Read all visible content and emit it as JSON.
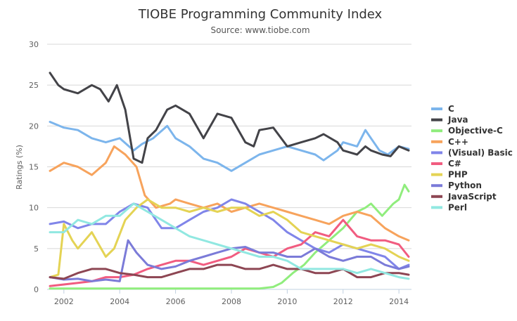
{
  "chart_data": {
    "type": "line",
    "title": "TIOBE Programming Community Index",
    "subtitle": "Source: www.tiobe.com",
    "xlabel": "",
    "ylabel": "Ratings (%)",
    "ylim": [
      0,
      30
    ],
    "yticks": [
      0,
      5,
      10,
      15,
      20,
      25,
      30
    ],
    "xlim": [
      2001.4,
      2014.45
    ],
    "xticks": [
      2002,
      2004,
      2006,
      2008,
      2010,
      2012,
      2014
    ],
    "xtick_labels": [
      "2002",
      "2004",
      "2006",
      "2008",
      "2010",
      "2012",
      "2014"
    ],
    "grid": true,
    "legend": "right",
    "series": [
      {
        "name": "C",
        "color": "#7cb5ec",
        "x": [
          2001.5,
          2002,
          2002.5,
          2003,
          2003.5,
          2004,
          2004.5,
          2004.8,
          2005.2,
          2005.7,
          2006,
          2006.5,
          2007,
          2007.5,
          2008,
          2008.5,
          2009,
          2009.5,
          2010,
          2010.5,
          2011,
          2011.3,
          2011.8,
          2012,
          2012.5,
          2012.8,
          2013,
          2013.3,
          2013.6,
          2014,
          2014.35
        ],
        "values": [
          20.5,
          19.8,
          19.5,
          18.5,
          18.0,
          18.5,
          17.0,
          17.8,
          18.5,
          20.0,
          18.5,
          17.5,
          16.0,
          15.5,
          14.5,
          15.5,
          16.5,
          17.0,
          17.5,
          17.0,
          16.5,
          15.8,
          17.0,
          18.0,
          17.5,
          19.5,
          18.5,
          17.0,
          16.5,
          17.5,
          17.2
        ]
      },
      {
        "name": "Java",
        "color": "#434348",
        "x": [
          2001.5,
          2001.8,
          2002,
          2002.5,
          2003,
          2003.3,
          2003.6,
          2003.9,
          2004.2,
          2004.5,
          2004.8,
          2005,
          2005.3,
          2005.7,
          2006,
          2006.5,
          2007,
          2007.5,
          2008,
          2008.5,
          2008.8,
          2009,
          2009.5,
          2010,
          2010.5,
          2011,
          2011.3,
          2011.8,
          2012,
          2012.5,
          2012.8,
          2013,
          2013.4,
          2013.7,
          2014,
          2014.35
        ],
        "values": [
          26.5,
          25.0,
          24.5,
          24.0,
          25.0,
          24.5,
          23.0,
          25.0,
          22.0,
          16.0,
          15.5,
          18.5,
          19.5,
          22.0,
          22.5,
          21.5,
          18.5,
          21.5,
          21.0,
          18.0,
          17.5,
          19.5,
          19.8,
          17.5,
          18.0,
          18.5,
          19.0,
          18.0,
          17.0,
          16.5,
          17.5,
          17.0,
          16.5,
          16.3,
          17.5,
          17.0
        ]
      },
      {
        "name": "Objective-C",
        "color": "#90ed7d",
        "x": [
          2001.5,
          2003,
          2004,
          2005,
          2006,
          2007,
          2008,
          2009,
          2009.5,
          2009.8,
          2010.2,
          2010.6,
          2011,
          2011.5,
          2012,
          2012.5,
          2012.8,
          2013,
          2013.4,
          2013.8,
          2014,
          2014.2,
          2014.35
        ],
        "values": [
          0.1,
          0.1,
          0.1,
          0.1,
          0.1,
          0.1,
          0.1,
          0.1,
          0.3,
          0.8,
          2.0,
          3.0,
          4.5,
          6.0,
          7.5,
          9.5,
          10.0,
          10.5,
          9.0,
          10.5,
          11.0,
          12.8,
          12.0
        ]
      },
      {
        "name": "C++",
        "color": "#f7a35c",
        "x": [
          2001.5,
          2002,
          2002.5,
          2003,
          2003.5,
          2003.8,
          2004.2,
          2004.6,
          2004.9,
          2005.3,
          2005.8,
          2006,
          2006.5,
          2007,
          2007.5,
          2008,
          2008.5,
          2009,
          2009.5,
          2010,
          2010.5,
          2011,
          2011.5,
          2012,
          2012.5,
          2013,
          2013.5,
          2014,
          2014.35
        ],
        "values": [
          14.5,
          15.5,
          15.0,
          14.0,
          15.5,
          17.5,
          16.5,
          15.0,
          11.5,
          10.0,
          10.5,
          11.0,
          10.5,
          10.0,
          10.5,
          9.5,
          10.0,
          10.5,
          10.0,
          9.5,
          9.0,
          8.5,
          8.0,
          9.0,
          9.5,
          9.0,
          7.5,
          6.5,
          6.0
        ]
      },
      {
        "name": "(Visual) Basic",
        "color": "#8085e9",
        "x": [
          2001.5,
          2002,
          2002.5,
          2003,
          2003.5,
          2004,
          2004.5,
          2005,
          2005.5,
          2006,
          2006.5,
          2007,
          2007.5,
          2008,
          2008.5,
          2009,
          2009.5,
          2010,
          2010.5,
          2011,
          2011.5,
          2012,
          2012.5,
          2013,
          2013.5,
          2014,
          2014.35
        ],
        "values": [
          8.0,
          8.3,
          7.5,
          8.0,
          8.0,
          9.5,
          10.5,
          10.0,
          7.5,
          7.5,
          8.5,
          9.5,
          10.0,
          11.0,
          10.5,
          9.5,
          8.5,
          7.0,
          6.0,
          5.0,
          4.5,
          5.5,
          5.0,
          4.5,
          4.0,
          2.5,
          3.0
        ]
      },
      {
        "name": "C#",
        "color": "#f15c80",
        "x": [
          2001.5,
          2002,
          2002.5,
          2003,
          2003.5,
          2004,
          2004.5,
          2005,
          2005.5,
          2006,
          2006.5,
          2007,
          2007.5,
          2008,
          2008.5,
          2009,
          2009.5,
          2010,
          2010.5,
          2011,
          2011.5,
          2012,
          2012.5,
          2013,
          2013.5,
          2014,
          2014.35
        ],
        "values": [
          0.4,
          0.6,
          0.8,
          1.0,
          1.5,
          1.5,
          1.8,
          2.5,
          3.0,
          3.5,
          3.5,
          3.0,
          3.5,
          4.0,
          5.0,
          4.5,
          4.0,
          5.0,
          5.5,
          7.0,
          6.5,
          8.5,
          6.5,
          6.0,
          6.0,
          5.5,
          4.0
        ]
      },
      {
        "name": "PHP",
        "color": "#e4d354",
        "x": [
          2001.5,
          2001.8,
          2002,
          2002.3,
          2002.5,
          2003,
          2003.5,
          2003.8,
          2004.2,
          2004.6,
          2005,
          2005.5,
          2006,
          2006.5,
          2007,
          2007.5,
          2008,
          2008.5,
          2009,
          2009.5,
          2010,
          2010.5,
          2011,
          2011.5,
          2012,
          2012.5,
          2013,
          2013.5,
          2014,
          2014.35
        ],
        "values": [
          1.5,
          1.8,
          8.0,
          6.0,
          5.0,
          7.0,
          4.0,
          5.0,
          8.5,
          10.0,
          11.0,
          10.0,
          10.0,
          9.5,
          10.0,
          9.5,
          10.0,
          10.0,
          9.0,
          9.5,
          8.5,
          7.0,
          6.5,
          6.0,
          5.5,
          5.0,
          5.5,
          5.0,
          4.0,
          3.5
        ]
      },
      {
        "name": "Python",
        "color": "#7b7bd8",
        "x": [
          2001.5,
          2002,
          2002.5,
          2003,
          2003.5,
          2004,
          2004.3,
          2004.6,
          2005,
          2005.5,
          2006,
          2006.5,
          2007,
          2007.5,
          2008,
          2008.5,
          2009,
          2009.5,
          2010,
          2010.5,
          2011,
          2011.5,
          2012,
          2012.5,
          2013,
          2013.5,
          2014,
          2014.35
        ],
        "values": [
          1.5,
          1.2,
          1.3,
          1.0,
          1.2,
          1.0,
          6.0,
          4.5,
          3.0,
          2.5,
          2.8,
          3.5,
          4.0,
          4.5,
          5.0,
          5.2,
          4.5,
          4.5,
          4.0,
          4.0,
          5.0,
          4.0,
          3.5,
          4.0,
          4.0,
          3.0,
          2.5,
          2.8
        ]
      },
      {
        "name": "JavaScript",
        "color": "#8d4653",
        "x": [
          2001.5,
          2002,
          2002.5,
          2003,
          2003.5,
          2004,
          2004.5,
          2005,
          2005.5,
          2006,
          2006.5,
          2007,
          2007.5,
          2008,
          2008.5,
          2009,
          2009.5,
          2010,
          2010.5,
          2011,
          2011.5,
          2012,
          2012.5,
          2013,
          2013.5,
          2014,
          2014.35
        ],
        "values": [
          1.5,
          1.3,
          2.0,
          2.5,
          2.5,
          2.0,
          1.8,
          1.5,
          1.5,
          2.0,
          2.5,
          2.5,
          3.0,
          3.0,
          2.5,
          2.5,
          3.0,
          2.5,
          2.5,
          2.0,
          2.0,
          2.5,
          1.5,
          1.5,
          2.0,
          2.0,
          1.8
        ]
      },
      {
        "name": "Perl",
        "color": "#91e8e1",
        "x": [
          2001.5,
          2002,
          2002.5,
          2003,
          2003.5,
          2004,
          2004.5,
          2005,
          2005.5,
          2006,
          2006.5,
          2007,
          2007.5,
          2008,
          2008.5,
          2009,
          2009.5,
          2010,
          2010.5,
          2011,
          2011.5,
          2012,
          2012.5,
          2013,
          2013.5,
          2014,
          2014.35
        ],
        "values": [
          7.0,
          7.0,
          8.5,
          8.0,
          9.0,
          9.0,
          10.5,
          9.5,
          8.5,
          7.5,
          6.5,
          6.0,
          5.5,
          5.0,
          4.5,
          4.0,
          4.0,
          3.5,
          2.5,
          2.5,
          2.5,
          2.5,
          2.0,
          2.5,
          2.0,
          1.5,
          1.3
        ]
      }
    ]
  }
}
